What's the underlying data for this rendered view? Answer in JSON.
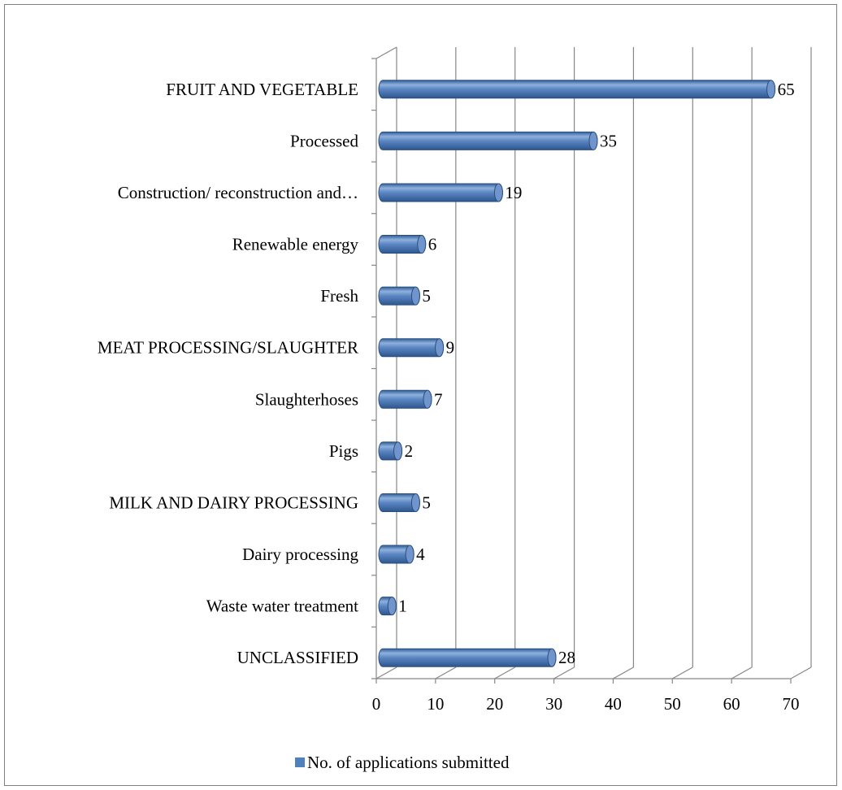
{
  "chart_data": {
    "type": "bar",
    "orientation": "horizontal",
    "style": "3d-cylinder",
    "categories": [
      "FRUIT AND VEGETABLE",
      "Processed",
      "Construction/ reconstruction and…",
      "Renewable energy",
      "Fresh",
      "MEAT PROCESSING/SLAUGHTER",
      "Slaughterhoses",
      "Pigs",
      "MILK AND DAIRY PROCESSING",
      "Dairy processing",
      "Waste water treatment",
      "UNCLASSIFIED"
    ],
    "series": [
      {
        "name": "No. of applications submitted",
        "values": [
          65,
          35,
          19,
          6,
          5,
          9,
          7,
          2,
          5,
          4,
          1,
          28
        ]
      }
    ],
    "xlim": [
      0,
      70
    ],
    "xticks": [
      "0",
      "10",
      "20",
      "30",
      "40",
      "50",
      "60",
      "70"
    ],
    "grid": true,
    "legend_position": "bottom",
    "bar_color": "#4f81bd"
  }
}
